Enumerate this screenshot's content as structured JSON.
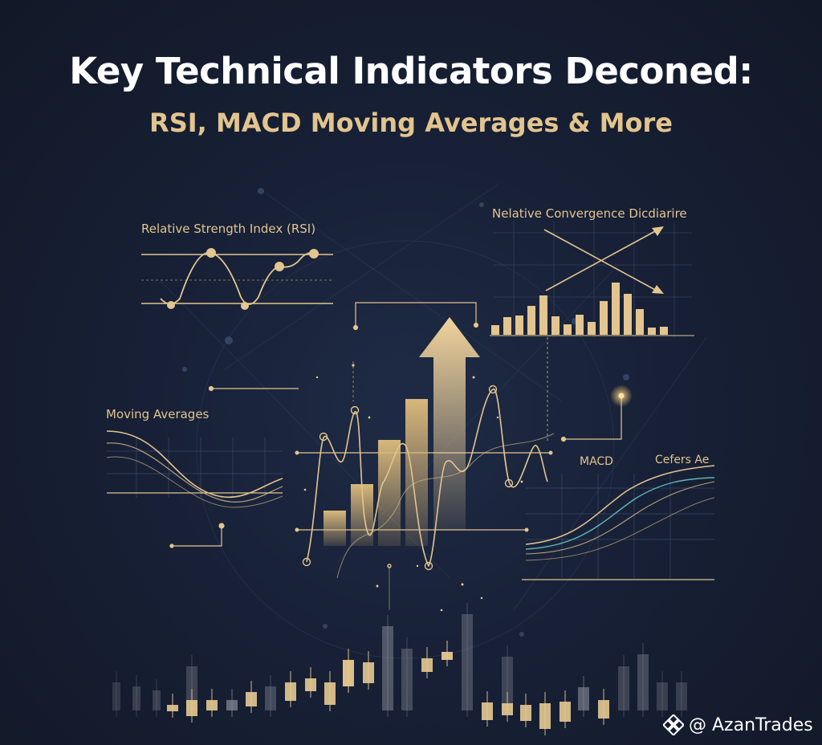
{
  "header": {
    "title": "Key Technical Indicators Deconed:",
    "subtitle": "RSI, MACD Moving Averages & More"
  },
  "panels": {
    "rsi_label": "Relative Strength Index (RSI)",
    "convergence_label": "Nelative Convergence Dicdiarire",
    "moving_averages_label": "Moving Averages",
    "macd_label": "MACD",
    "macd_secondary_label": "Cefers Ae"
  },
  "watermark": {
    "handle": "@ AzanTrades",
    "icon": "binance-diamond-icon"
  },
  "colors": {
    "background": "#141a2b",
    "gold": "#e3c58f",
    "title": "#ffffff",
    "teal": "#5fb6b8"
  }
}
